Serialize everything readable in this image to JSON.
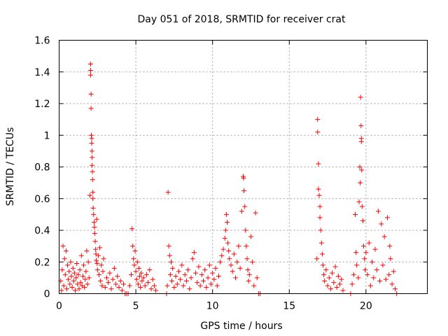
{
  "chart_data": {
    "type": "scatter",
    "title": "Day 051 of 2018, SRMTID for receiver crat",
    "xlabel": "GPS time / hours",
    "ylabel": "SRMTID / TECUs",
    "xlim": [
      0,
      24
    ],
    "ylim": [
      0,
      1.6
    ],
    "xticks": [
      0,
      5,
      10,
      15,
      20
    ],
    "xtick_labels": [
      "0",
      "5",
      "10",
      "15",
      "20"
    ],
    "yticks": [
      0,
      0.2,
      0.4,
      0.6,
      0.8,
      1.0,
      1.2,
      1.4,
      1.6
    ],
    "ytick_labels": [
      "0",
      "0.2",
      "0.4",
      "0.6",
      "0.8",
      "1",
      "1.2",
      "1.4",
      "1.6"
    ],
    "grid": true,
    "marker": "plus",
    "marker_color": "#ff0000",
    "series": [
      {
        "name": "SRMTID",
        "points": [
          [
            0.1,
            0.08
          ],
          [
            0.15,
            0.02
          ],
          [
            0.2,
            0.15
          ],
          [
            0.25,
            0.3
          ],
          [
            0.3,
            0.05
          ],
          [
            0.35,
            0.22
          ],
          [
            0.4,
            0.12
          ],
          [
            0.45,
            0.27
          ],
          [
            0.5,
            0.03
          ],
          [
            0.55,
            0.18
          ],
          [
            0.6,
            0.09
          ],
          [
            0.65,
            0.14
          ],
          [
            0.7,
            0.06
          ],
          [
            0.75,
            0.2
          ],
          [
            0.8,
            0.11
          ],
          [
            0.85,
            0.04
          ],
          [
            0.9,
            0.16
          ],
          [
            0.95,
            0.08
          ],
          [
            1.0,
            0.13
          ],
          [
            1.05,
            0.02
          ],
          [
            1.1,
            0.1
          ],
          [
            1.15,
            0.19
          ],
          [
            1.2,
            0.06
          ],
          [
            1.25,
            0.12
          ],
          [
            1.3,
            0.03
          ],
          [
            1.35,
            0.15
          ],
          [
            1.4,
            0.07
          ],
          [
            1.45,
            0.24
          ],
          [
            1.5,
            0.05
          ],
          [
            1.55,
            0.11
          ],
          [
            1.6,
            0.18
          ],
          [
            1.65,
            0.04
          ],
          [
            1.7,
            0.09
          ],
          [
            1.75,
            0.14
          ],
          [
            1.8,
            0.27
          ],
          [
            1.85,
            0.06
          ],
          [
            1.9,
            0.2
          ],
          [
            1.95,
            0.1
          ],
          [
            2.0,
            0.62
          ],
          [
            2.05,
            1.45
          ],
          [
            2.05,
            1.41
          ],
          [
            2.05,
            1.38
          ],
          [
            2.08,
            1.26
          ],
          [
            2.08,
            1.17
          ],
          [
            2.1,
            1.0
          ],
          [
            2.12,
            0.98
          ],
          [
            2.12,
            0.95
          ],
          [
            2.14,
            0.9
          ],
          [
            2.15,
            0.86
          ],
          [
            2.15,
            0.81
          ],
          [
            2.17,
            0.77
          ],
          [
            2.18,
            0.72
          ],
          [
            2.2,
            0.64
          ],
          [
            2.2,
            0.6
          ],
          [
            2.22,
            0.54
          ],
          [
            2.25,
            0.5
          ],
          [
            2.28,
            0.45
          ],
          [
            2.3,
            0.42
          ],
          [
            2.32,
            0.38
          ],
          [
            2.35,
            0.33
          ],
          [
            2.38,
            0.28
          ],
          [
            2.4,
            0.25
          ],
          [
            2.42,
            0.21
          ],
          [
            2.45,
            0.47
          ],
          [
            2.48,
            0.19
          ],
          [
            2.5,
            0.15
          ],
          [
            2.55,
            0.24
          ],
          [
            2.6,
            0.12
          ],
          [
            2.65,
            0.29
          ],
          [
            2.7,
            0.08
          ],
          [
            2.75,
            0.18
          ],
          [
            2.8,
            0.05
          ],
          [
            2.85,
            0.14
          ],
          [
            2.9,
            0.22
          ],
          [
            3.0,
            0.04
          ],
          [
            3.1,
            0.1
          ],
          [
            3.2,
            0.07
          ],
          [
            3.3,
            0.13
          ],
          [
            3.4,
            0.03
          ],
          [
            3.5,
            0.09
          ],
          [
            3.6,
            0.16
          ],
          [
            3.7,
            0.06
          ],
          [
            3.8,
            0.11
          ],
          [
            3.9,
            0.04
          ],
          [
            4.0,
            0.08
          ],
          [
            4.1,
            0.02
          ],
          [
            4.2,
            0.06
          ],
          [
            4.3,
            0.0
          ],
          [
            4.4,
            0.0
          ],
          [
            4.5,
            0.0
          ],
          [
            4.6,
            0.05
          ],
          [
            4.7,
            0.12
          ],
          [
            4.75,
            0.41
          ],
          [
            4.8,
            0.3
          ],
          [
            4.85,
            0.22
          ],
          [
            4.9,
            0.18
          ],
          [
            4.95,
            0.27
          ],
          [
            5.0,
            0.14
          ],
          [
            5.05,
            0.09
          ],
          [
            5.1,
            0.2
          ],
          [
            5.15,
            0.06
          ],
          [
            5.2,
            0.16
          ],
          [
            5.25,
            0.11
          ],
          [
            5.3,
            0.04
          ],
          [
            5.35,
            0.13
          ],
          [
            5.4,
            0.08
          ],
          [
            5.5,
            0.1
          ],
          [
            5.6,
            0.05
          ],
          [
            5.7,
            0.12
          ],
          [
            5.8,
            0.07
          ],
          [
            5.9,
            0.15
          ],
          [
            6.0,
            0.03
          ],
          [
            6.1,
            0.09
          ],
          [
            6.2,
            0.05
          ],
          [
            6.3,
            0.02
          ],
          [
            7.0,
            0.0
          ],
          [
            7.05,
            0.05
          ],
          [
            7.1,
            0.64
          ],
          [
            7.15,
            0.3
          ],
          [
            7.2,
            0.24
          ],
          [
            7.25,
            0.12
          ],
          [
            7.3,
            0.2
          ],
          [
            7.35,
            0.08
          ],
          [
            7.4,
            0.16
          ],
          [
            7.5,
            0.04
          ],
          [
            7.6,
            0.11
          ],
          [
            7.7,
            0.06
          ],
          [
            7.8,
            0.14
          ],
          [
            7.9,
            0.09
          ],
          [
            8.0,
            0.18
          ],
          [
            8.1,
            0.05
          ],
          [
            8.2,
            0.12
          ],
          [
            8.3,
            0.08
          ],
          [
            8.4,
            0.15
          ],
          [
            8.5,
            0.03
          ],
          [
            8.6,
            0.1
          ],
          [
            8.7,
            0.22
          ],
          [
            8.8,
            0.26
          ],
          [
            8.9,
            0.13
          ],
          [
            9.0,
            0.07
          ],
          [
            9.1,
            0.17
          ],
          [
            9.2,
            0.05
          ],
          [
            9.3,
            0.12
          ],
          [
            9.4,
            0.08
          ],
          [
            9.5,
            0.15
          ],
          [
            9.6,
            0.04
          ],
          [
            9.7,
            0.1
          ],
          [
            9.8,
            0.18
          ],
          [
            9.9,
            0.06
          ],
          [
            10.0,
            0.13
          ],
          [
            10.1,
            0.09
          ],
          [
            10.2,
            0.16
          ],
          [
            10.3,
            0.05
          ],
          [
            10.4,
            0.11
          ],
          [
            10.5,
            0.2
          ],
          [
            10.6,
            0.24
          ],
          [
            10.7,
            0.28
          ],
          [
            10.8,
            0.35
          ],
          [
            10.85,
            0.4
          ],
          [
            10.9,
            0.5
          ],
          [
            10.95,
            0.45
          ],
          [
            11.0,
            0.32
          ],
          [
            11.05,
            0.27
          ],
          [
            11.1,
            0.22
          ],
          [
            11.2,
            0.18
          ],
          [
            11.3,
            0.14
          ],
          [
            11.4,
            0.25
          ],
          [
            11.5,
            0.1
          ],
          [
            11.6,
            0.2
          ],
          [
            11.7,
            0.3
          ],
          [
            11.8,
            0.16
          ],
          [
            11.9,
            0.52
          ],
          [
            12.0,
            0.74
          ],
          [
            12.02,
            0.73
          ],
          [
            12.05,
            0.65
          ],
          [
            12.1,
            0.55
          ],
          [
            12.15,
            0.4
          ],
          [
            12.2,
            0.3
          ],
          [
            12.25,
            0.22
          ],
          [
            12.3,
            0.15
          ],
          [
            12.35,
            0.08
          ],
          [
            12.4,
            0.12
          ],
          [
            12.5,
            0.36
          ],
          [
            12.6,
            0.2
          ],
          [
            12.7,
            0.05
          ],
          [
            12.8,
            0.51
          ],
          [
            12.9,
            0.1
          ],
          [
            13.0,
            0.0
          ],
          [
            13.1,
            0.0
          ],
          [
            16.8,
            0.22
          ],
          [
            16.85,
            1.1
          ],
          [
            16.85,
            1.02
          ],
          [
            16.9,
            0.82
          ],
          [
            16.9,
            0.66
          ],
          [
            16.95,
            0.62
          ],
          [
            17.0,
            0.55
          ],
          [
            17.0,
            0.48
          ],
          [
            17.05,
            0.4
          ],
          [
            17.1,
            0.32
          ],
          [
            17.15,
            0.25
          ],
          [
            17.2,
            0.18
          ],
          [
            17.25,
            0.12
          ],
          [
            17.3,
            0.08
          ],
          [
            17.4,
            0.15
          ],
          [
            17.5,
            0.05
          ],
          [
            17.6,
            0.1
          ],
          [
            17.7,
            0.03
          ],
          [
            17.8,
            0.13
          ],
          [
            17.9,
            0.07
          ],
          [
            18.0,
            0.17
          ],
          [
            18.1,
            0.04
          ],
          [
            18.2,
            0.11
          ],
          [
            18.3,
            0.06
          ],
          [
            18.4,
            0.09
          ],
          [
            18.5,
            0.02
          ],
          [
            19.0,
            0.0
          ],
          [
            19.1,
            0.06
          ],
          [
            19.2,
            0.12
          ],
          [
            19.3,
            0.5
          ],
          [
            19.35,
            0.26
          ],
          [
            19.4,
            0.18
          ],
          [
            19.5,
            0.1
          ],
          [
            19.55,
            0.58
          ],
          [
            19.6,
            0.8
          ],
          [
            19.62,
            0.7
          ],
          [
            19.65,
            1.24
          ],
          [
            19.68,
            1.06
          ],
          [
            19.7,
            0.98
          ],
          [
            19.7,
            0.96
          ],
          [
            19.72,
            0.78
          ],
          [
            19.75,
            0.55
          ],
          [
            19.8,
            0.46
          ],
          [
            19.85,
            0.3
          ],
          [
            19.9,
            0.22
          ],
          [
            19.95,
            0.15
          ],
          [
            20.0,
            0.26
          ],
          [
            20.1,
            0.12
          ],
          [
            20.2,
            0.32
          ],
          [
            20.3,
            0.05
          ],
          [
            20.4,
            0.2
          ],
          [
            20.5,
            0.1
          ],
          [
            20.6,
            0.28
          ],
          [
            20.7,
            0.15
          ],
          [
            20.8,
            0.52
          ],
          [
            20.9,
            0.08
          ],
          [
            21.0,
            0.44
          ],
          [
            21.1,
            0.18
          ],
          [
            21.2,
            0.36
          ],
          [
            21.3,
            0.09
          ],
          [
            21.4,
            0.48
          ],
          [
            21.5,
            0.12
          ],
          [
            21.55,
            0.3
          ],
          [
            21.6,
            0.22
          ],
          [
            21.7,
            0.06
          ],
          [
            21.8,
            0.14
          ],
          [
            21.9,
            0.03
          ],
          [
            22.0,
            0.0
          ]
        ]
      }
    ]
  }
}
